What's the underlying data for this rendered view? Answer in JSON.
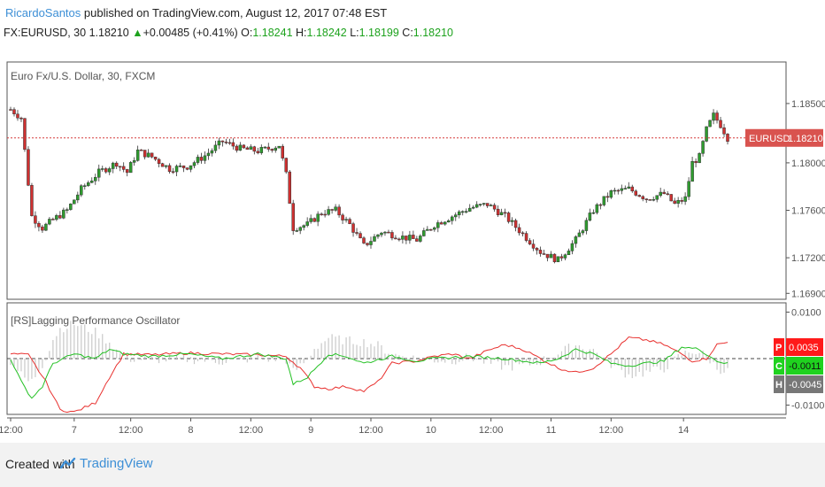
{
  "header": {
    "author": "RicardoSantos",
    "published_text": "published on TradingView.com, August 12, 2017 07:48 EST"
  },
  "symbol_line": {
    "symbol": "FX:EURUSD, 30",
    "last": "1.18210",
    "change": "+0.00485 (+0.41%)",
    "o_label": "O:",
    "o": "1.18241",
    "h_label": "H:",
    "h": "1.18242",
    "l_label": "L:",
    "l": "1.18199",
    "c_label": "C:",
    "c": "1.18210"
  },
  "chart_data": [
    {
      "type": "candlestick",
      "title": "Euro Fx/U.S. Dollar, 30, FXCM",
      "ylim": [
        1.1685,
        1.1885
      ],
      "y_ticks": [
        "1.18500",
        "1.18000",
        "1.17600",
        "1.17200",
        "1.16900"
      ],
      "y_tick_values": [
        1.185,
        1.18,
        1.176,
        1.172,
        1.169
      ],
      "last_price_label": "EURUSD",
      "last_price_value": "1.18210",
      "last_price": 1.1821,
      "x_ticks": [
        "12:00",
        "7",
        "12:00",
        "8",
        "12:00",
        "9",
        "12:00",
        "10",
        "12:00",
        "11",
        "12:00",
        "14"
      ],
      "close_path": [
        [
          0,
          1.1845
        ],
        [
          3,
          1.1838
        ],
        [
          6,
          1.1755
        ],
        [
          9,
          1.1745
        ],
        [
          12,
          1.1752
        ],
        [
          16,
          1.176
        ],
        [
          20,
          1.1778
        ],
        [
          25,
          1.1792
        ],
        [
          30,
          1.18
        ],
        [
          33,
          1.1792
        ],
        [
          36,
          1.181
        ],
        [
          40,
          1.1805
        ],
        [
          45,
          1.1795
        ],
        [
          50,
          1.1797
        ],
        [
          55,
          1.1806
        ],
        [
          60,
          1.1818
        ],
        [
          65,
          1.1812
        ],
        [
          70,
          1.181
        ],
        [
          73,
          1.1812
        ],
        [
          76,
          1.1815
        ],
        [
          78,
          1.179
        ],
        [
          80,
          1.1745
        ],
        [
          84,
          1.1748
        ],
        [
          88,
          1.1758
        ],
        [
          92,
          1.176
        ],
        [
          96,
          1.1748
        ],
        [
          100,
          1.173
        ],
        [
          105,
          1.1742
        ],
        [
          110,
          1.1738
        ],
        [
          115,
          1.1735
        ],
        [
          120,
          1.1748
        ],
        [
          125,
          1.1755
        ],
        [
          130,
          1.1762
        ],
        [
          135,
          1.1765
        ],
        [
          140,
          1.1755
        ],
        [
          145,
          1.174
        ],
        [
          150,
          1.1725
        ],
        [
          155,
          1.1718
        ],
        [
          160,
          1.1735
        ],
        [
          165,
          1.176
        ],
        [
          170,
          1.1775
        ],
        [
          175,
          1.1778
        ],
        [
          180,
          1.177
        ],
        [
          185,
          1.1774
        ],
        [
          188,
          1.1765
        ],
        [
          191,
          1.177
        ],
        [
          193,
          1.18
        ],
        [
          195,
          1.1805
        ],
        [
          197,
          1.1828
        ],
        [
          199,
          1.184
        ],
        [
          201,
          1.1832
        ],
        [
          203,
          1.1821
        ]
      ],
      "n_bars": 204
    },
    {
      "type": "line",
      "title": "[RS]Lagging Performance Oscillator",
      "ylim": [
        -0.012,
        0.012
      ],
      "y_ticks": [
        "0.0100",
        "-0.0100"
      ],
      "y_tick_values": [
        0.01,
        -0.01
      ],
      "series": [
        {
          "name": "P",
          "color": "#e8312f",
          "label_value": "0.0035",
          "last": 0.0035
        },
        {
          "name": "C",
          "color": "#22c022",
          "label_value": "-0.0011",
          "last": -0.0011
        },
        {
          "name": "H",
          "color": "#777777",
          "label_value": "-0.0045",
          "last": -0.0045
        }
      ],
      "red_path": [
        [
          0,
          0.001
        ],
        [
          5,
          0.0008
        ],
        [
          10,
          -0.005
        ],
        [
          14,
          -0.011
        ],
        [
          18,
          -0.0115
        ],
        [
          24,
          -0.0095
        ],
        [
          28,
          -0.004
        ],
        [
          32,
          0.001
        ],
        [
          40,
          0.0008
        ],
        [
          50,
          0.0012
        ],
        [
          60,
          0.001
        ],
        [
          70,
          0.0008
        ],
        [
          78,
          0.0005
        ],
        [
          82,
          -0.002
        ],
        [
          86,
          -0.006
        ],
        [
          90,
          -0.0065
        ],
        [
          95,
          -0.006
        ],
        [
          100,
          -0.007
        ],
        [
          104,
          -0.005
        ],
        [
          108,
          -0.001
        ],
        [
          115,
          -0.0005
        ],
        [
          120,
          0.0005
        ],
        [
          125,
          0.001
        ],
        [
          130,
          0.0
        ],
        [
          136,
          0.002
        ],
        [
          140,
          0.003
        ],
        [
          145,
          0.002
        ],
        [
          150,
          0.0
        ],
        [
          155,
          -0.002
        ],
        [
          160,
          -0.003
        ],
        [
          165,
          -0.002
        ],
        [
          170,
          0.001
        ],
        [
          175,
          0.0045
        ],
        [
          180,
          0.004
        ],
        [
          185,
          0.003
        ],
        [
          190,
          0.001
        ],
        [
          193,
          -0.0005
        ],
        [
          197,
          0.0
        ],
        [
          200,
          0.003
        ],
        [
          203,
          0.0035
        ]
      ],
      "green_path": [
        [
          0,
          0.0
        ],
        [
          3,
          -0.005
        ],
        [
          6,
          -0.0085
        ],
        [
          9,
          -0.006
        ],
        [
          12,
          -0.001
        ],
        [
          18,
          0.001
        ],
        [
          24,
          0.0
        ],
        [
          28,
          0.002
        ],
        [
          32,
          0.001
        ],
        [
          40,
          0.0005
        ],
        [
          50,
          0.001
        ],
        [
          55,
          0.0005
        ],
        [
          60,
          0.0
        ],
        [
          70,
          0.001
        ],
        [
          78,
          0.0
        ],
        [
          80,
          -0.0055
        ],
        [
          84,
          -0.004
        ],
        [
          90,
          0.001
        ],
        [
          95,
          0.0005
        ],
        [
          100,
          -0.001
        ],
        [
          108,
          0.0005
        ],
        [
          115,
          -0.0005
        ],
        [
          120,
          0.0
        ],
        [
          130,
          0.0005
        ],
        [
          140,
          0.0
        ],
        [
          150,
          -0.001
        ],
        [
          155,
          0.0
        ],
        [
          160,
          0.002
        ],
        [
          165,
          0.001
        ],
        [
          170,
          -0.001
        ],
        [
          175,
          -0.0015
        ],
        [
          180,
          -0.001
        ],
        [
          185,
          -0.0005
        ],
        [
          190,
          0.0025
        ],
        [
          195,
          0.002
        ],
        [
          200,
          -0.0005
        ],
        [
          203,
          -0.0011
        ]
      ]
    }
  ]
}
